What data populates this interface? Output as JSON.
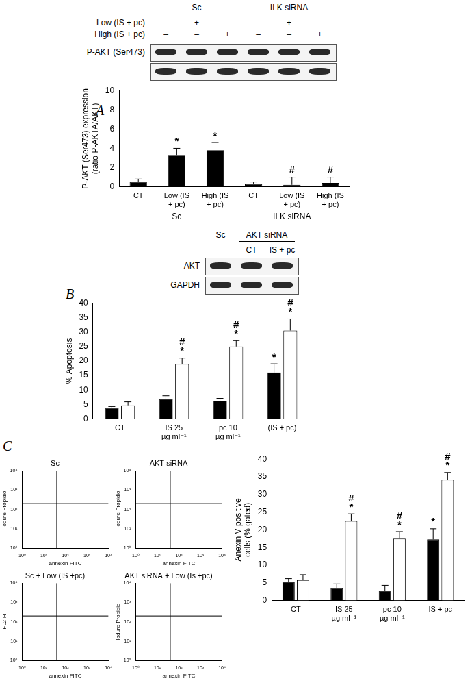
{
  "panel_labels": [
    "A",
    "B",
    "C"
  ],
  "blots": [
    {
      "lane_groups": [
        {
          "label": "Sc",
          "lanes": 3
        },
        {
          "label": "ILK siRNA",
          "lanes": 3
        }
      ],
      "treatments": [
        {
          "label": "Low (IS + pc)",
          "lanes": [
            "–",
            "+",
            "–",
            "–",
            "+",
            "–"
          ]
        },
        {
          "label": "High (IS + pc)",
          "lanes": [
            "–",
            "–",
            "+",
            "–",
            "–",
            "+"
          ]
        }
      ],
      "bands": [
        "P-AKT (Ser473)",
        null
      ]
    },
    {
      "lane_groups": [
        {
          "label": "Sc",
          "lanes": 1
        },
        {
          "label": "AKT siRNA",
          "lanes": 2
        }
      ],
      "lane_labels": [
        null,
        "CT",
        "IS + pc"
      ],
      "bands": [
        "AKT",
        "GAPDH"
      ]
    }
  ],
  "chart_data": [
    {
      "type": "bar",
      "categories": [
        "CT",
        [
          "Low (IS",
          "+ pc)"
        ],
        [
          "High (IS",
          "+ pc)"
        ],
        "CT",
        [
          "Low (IS",
          "+ pc)"
        ],
        [
          "High (IS",
          "+ pc)"
        ]
      ],
      "groups": [
        "Sc",
        "ILK siRNA"
      ],
      "values": [
        0.5,
        3.3,
        3.8,
        0.3,
        0.2,
        0.4
      ],
      "errors": [
        0.3,
        0.7,
        0.8,
        0.2,
        0.8,
        0.6
      ],
      "annotations": [
        null,
        "*",
        "*",
        null,
        "#",
        "#"
      ],
      "color": "#000000",
      "ylabel": [
        "P-AKT (Ser473) expression",
        "(ratio P-AKTA/AKT)"
      ],
      "ylim": [
        0,
        10
      ],
      "yticks": [
        0,
        2,
        4,
        6,
        8,
        10
      ],
      "grid": false
    },
    {
      "type": "bar",
      "categories": [
        "CT",
        [
          "IS 25",
          "µg ml⁻¹"
        ],
        [
          "pc 10",
          "µg ml⁻¹"
        ],
        "(IS + pc)"
      ],
      "series": [
        {
          "color": "#000000",
          "values": [
            3.8,
            6.8,
            6.3,
            16
          ],
          "errors": [
            0.5,
            1.2,
            0.8,
            3
          ],
          "annotations": [
            null,
            null,
            null,
            "*"
          ]
        },
        {
          "color": "#ffffff",
          "values": [
            4.7,
            19,
            25,
            30.5
          ],
          "errors": [
            1.2,
            2,
            2,
            4
          ],
          "annotations": [
            null,
            [
              "#",
              "*"
            ],
            [
              "#",
              "*"
            ],
            [
              "#",
              "*"
            ]
          ]
        }
      ],
      "ylabel": "% Apoptosis",
      "ylim": [
        0,
        40
      ],
      "yticks": [
        0,
        5,
        10,
        15,
        20,
        25,
        30,
        35,
        40
      ],
      "grid": false
    },
    {
      "type": "bar",
      "categories": [
        "CT",
        [
          "IS 25",
          "µg ml⁻¹"
        ],
        [
          "pc 10",
          "µg ml⁻¹"
        ],
        "IS + pc"
      ],
      "series": [
        {
          "color": "#000000",
          "values": [
            5.2,
            3.5,
            2.8,
            17.3
          ],
          "errors": [
            1,
            1.2,
            1.5,
            3
          ],
          "annotations": [
            null,
            null,
            null,
            "*"
          ]
        },
        {
          "color": "#ffffff",
          "values": [
            5.8,
            22.5,
            17.5,
            34.2
          ],
          "errors": [
            1.5,
            2,
            2,
            2
          ],
          "annotations": [
            null,
            [
              "#",
              "*"
            ],
            [
              "#",
              "*"
            ],
            [
              "#",
              "*"
            ]
          ]
        }
      ],
      "ylabel": [
        "Anexin V positive",
        "cells (% gated)"
      ],
      "ylim": [
        0,
        40
      ],
      "yticks": [
        0,
        5,
        10,
        15,
        20,
        25,
        30,
        35,
        40
      ],
      "grid": false
    },
    {
      "type": "scatter",
      "title": "Sc",
      "xlabel": "annexin FITC",
      "ylabel": "Iodure Propidio",
      "log": true,
      "xlim": [
        1,
        10000
      ],
      "ylim": [
        1,
        10000
      ],
      "xticks": [
        {
          "value": 1,
          "label": "10⁰"
        },
        {
          "value": 10,
          "label": "10¹"
        },
        {
          "value": 100,
          "label": "10²"
        },
        {
          "value": 1000,
          "label": "10³"
        },
        {
          "value": 10000,
          "label": "10⁴"
        }
      ],
      "yticks": [
        {
          "value": 1,
          "label": "10⁰"
        },
        {
          "value": 10,
          "label": "10¹"
        },
        {
          "value": 100,
          "label": "10²"
        },
        {
          "value": 1000,
          "label": "10³"
        },
        {
          "value": 10000,
          "label": "10⁴"
        }
      ],
      "gate": {
        "x": 40,
        "y": 200
      },
      "grid": false
    },
    {
      "type": "scatter",
      "title": "AKT siRNA",
      "xlabel": "annexin FITC",
      "ylabel": "Iodure Propidio",
      "log": true,
      "xlim": [
        1,
        10000
      ],
      "ylim": [
        1,
        10000
      ],
      "xticks": [
        {
          "value": 1,
          "label": "10⁰"
        },
        {
          "value": 10,
          "label": "10¹"
        },
        {
          "value": 100,
          "label": "10²"
        },
        {
          "value": 1000,
          "label": "10³"
        },
        {
          "value": 10000,
          "label": "10⁴"
        }
      ],
      "yticks": [
        {
          "value": 1,
          "label": "10⁰"
        },
        {
          "value": 10,
          "label": "10¹"
        },
        {
          "value": 100,
          "label": "10²"
        },
        {
          "value": 1000,
          "label": "10³"
        },
        {
          "value": 10000,
          "label": "10⁴"
        }
      ],
      "gate": {
        "x": 40,
        "y": 200
      },
      "grid": false
    },
    {
      "type": "scatter",
      "title": "Sc + Low (IS +pc)",
      "xlabel": "annexin FITC",
      "ylabel": "FL2-H",
      "log": true,
      "xlim": [
        1,
        10000
      ],
      "ylim": [
        1,
        10000
      ],
      "xticks": [
        {
          "value": 1,
          "label": "10⁰"
        },
        {
          "value": 10,
          "label": "10¹"
        },
        {
          "value": 100,
          "label": "10²"
        },
        {
          "value": 1000,
          "label": "10³"
        },
        {
          "value": 10000,
          "label": "10⁴"
        }
      ],
      "yticks": [
        {
          "value": 1,
          "label": "10⁰"
        },
        {
          "value": 10,
          "label": "10¹"
        },
        {
          "value": 100,
          "label": "10²"
        },
        {
          "value": 1000,
          "label": "10³"
        },
        {
          "value": 10000,
          "label": "10⁴"
        }
      ],
      "gate": {
        "x": 40,
        "y": 200
      },
      "grid": false
    },
    {
      "type": "scatter",
      "title": "AKT siRNA + Low (Is +pc)",
      "xlabel": "annexin FITC",
      "ylabel": "Iodure Propidio",
      "log": true,
      "xlim": [
        1,
        10000
      ],
      "ylim": [
        1,
        10000
      ],
      "xticks": [
        {
          "value": 1,
          "label": "10⁰"
        },
        {
          "value": 10,
          "label": "10¹"
        },
        {
          "value": 100,
          "label": "10²"
        },
        {
          "value": 1000,
          "label": "10³"
        },
        {
          "value": 10000,
          "label": "10⁴"
        }
      ],
      "yticks": [
        {
          "value": 1,
          "label": "10⁰"
        },
        {
          "value": 10,
          "label": "10¹"
        },
        {
          "value": 100,
          "label": "10²"
        },
        {
          "value": 1000,
          "label": "10³"
        },
        {
          "value": 10000,
          "label": "10⁴"
        }
      ],
      "gate": {
        "x": 40,
        "y": 200
      },
      "grid": false
    }
  ]
}
